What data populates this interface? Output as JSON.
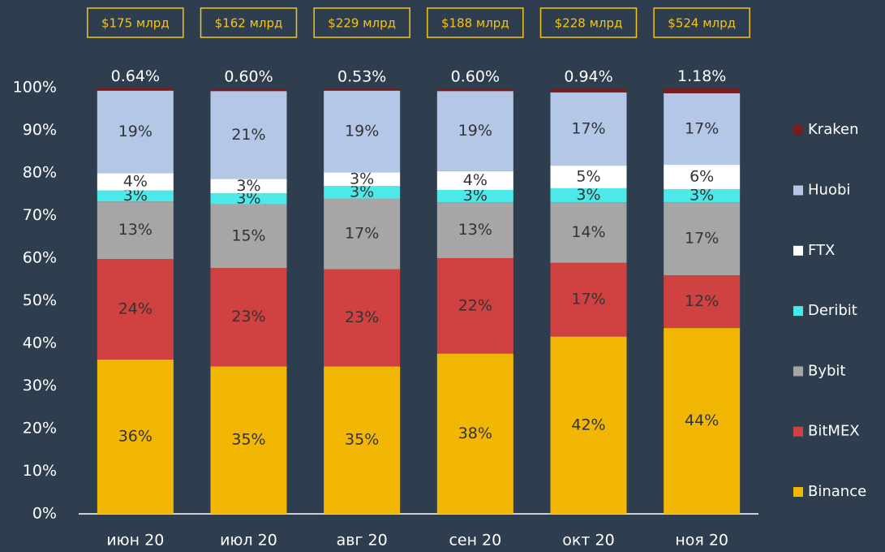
{
  "chart_data": {
    "type": "stacked_bar",
    "categories": [
      "июн 20",
      "июл 20",
      "авг 20",
      "сен 20",
      "окт 20",
      "ноя 20"
    ],
    "ylim": [
      0,
      100
    ],
    "yticks": [
      {
        "value": 0,
        "label": "0%"
      },
      {
        "value": 10,
        "label": "10%"
      },
      {
        "value": 20,
        "label": "20%"
      },
      {
        "value": 30,
        "label": "30%"
      },
      {
        "value": 40,
        "label": "40%"
      },
      {
        "value": 50,
        "label": "50%"
      },
      {
        "value": 60,
        "label": "60%"
      },
      {
        "value": 70,
        "label": "70%"
      },
      {
        "value": 80,
        "label": "80%"
      },
      {
        "value": 90,
        "label": "90%"
      },
      {
        "value": 100,
        "label": "100%"
      }
    ],
    "totals": {
      "values": [
        175,
        162,
        229,
        188,
        228,
        524
      ],
      "value_labels": [
        "$175 млрд",
        "$162 млрд",
        "$229 млрд",
        "$188 млрд",
        "$228 млрд",
        "$524 млрд"
      ]
    },
    "series": [
      {
        "name": "Binance",
        "color": "#f2b705",
        "values": [
          36.2,
          34.6,
          34.6,
          37.6,
          41.6,
          43.6
        ],
        "value_labels": [
          "36%",
          "35%",
          "35%",
          "38%",
          "42%",
          "44%"
        ]
      },
      {
        "name": "BitMEX",
        "color": "#d04242",
        "values": [
          23.6,
          23.1,
          22.8,
          22.4,
          17.3,
          12.4
        ],
        "value_labels": [
          "24%",
          "23%",
          "23%",
          "22%",
          "17%",
          "12%"
        ]
      },
      {
        "name": "Bybit",
        "color": "#a6a6a6",
        "values": [
          13.5,
          14.9,
          16.6,
          13.1,
          14.2,
          17.1
        ],
        "value_labels": [
          "13%",
          "15%",
          "17%",
          "13%",
          "14%",
          "17%"
        ]
      },
      {
        "name": "Deribit",
        "color": "#4de8e8",
        "values": [
          2.6,
          2.6,
          2.9,
          2.9,
          3.3,
          3.1
        ],
        "value_labels": [
          "3%",
          "3%",
          "3%",
          "3%",
          "3%",
          "3%"
        ]
      },
      {
        "name": "FTX",
        "color": "#ffffff",
        "values": [
          4.0,
          3.4,
          3.2,
          4.4,
          5.3,
          5.7
        ],
        "value_labels": [
          "4%",
          "3%",
          "3%",
          "4%",
          "5%",
          "6%"
        ]
      },
      {
        "name": "Huobi",
        "color": "#b4c7e7",
        "values": [
          19.4,
          20.6,
          19.2,
          18.8,
          17.2,
          16.8
        ],
        "value_labels": [
          "19%",
          "21%",
          "19%",
          "19%",
          "17%",
          "17%"
        ]
      },
      {
        "name": "Kraken",
        "color": "#7a1c1c",
        "values": [
          0.64,
          0.6,
          0.53,
          0.6,
          0.94,
          1.18
        ],
        "value_labels": [
          "0.64%",
          "0.60%",
          "0.53%",
          "0.60%",
          "0.94%",
          "1.18%"
        ]
      }
    ]
  }
}
